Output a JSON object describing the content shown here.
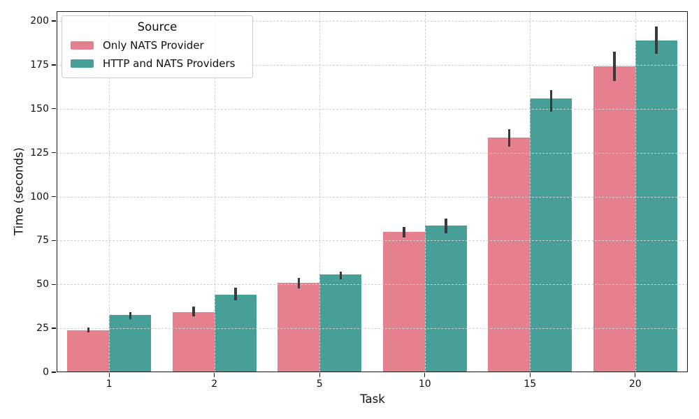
{
  "chart_data": {
    "type": "bar",
    "title": "",
    "xlabel": "Task",
    "ylabel": "Time (seconds)",
    "categories": [
      "1",
      "2",
      "5",
      "10",
      "15",
      "20"
    ],
    "yticks": [
      0,
      25,
      50,
      75,
      100,
      125,
      150,
      175,
      200
    ],
    "ylim": [
      0,
      205.6
    ],
    "grid": {
      "style": "dashed",
      "color": "#cfcfcf",
      "horizontal": true,
      "vertical": true
    },
    "legend": {
      "title": "Source",
      "position": "upper-left"
    },
    "series": [
      {
        "name": "Only NATS Provider",
        "color": "#e5818f",
        "values": [
          24,
          34.3,
          50.8,
          79.8,
          133.5,
          174
        ],
        "error_intervals": [
          [
            22.8,
            25.3
          ],
          [
            31.8,
            37.3
          ],
          [
            47.8,
            53.8
          ],
          [
            76.8,
            82.8
          ],
          [
            128.6,
            138.2
          ],
          [
            166,
            182.4
          ]
        ]
      },
      {
        "name": "HTTP and NATS Providers",
        "color": "#46a098",
        "values": [
          32.5,
          44,
          55.6,
          83.5,
          155.8,
          189
        ],
        "error_intervals": [
          [
            30.2,
            34.2
          ],
          [
            41,
            48.2
          ],
          [
            52.9,
            57.4
          ],
          [
            79.2,
            87.6
          ],
          [
            148.2,
            160.6
          ],
          [
            181.4,
            196.7
          ]
        ]
      }
    ],
    "error_bar_color": "#3a3a3a",
    "axis_color": "#1a1a1a",
    "background_color": "#ffffff"
  }
}
